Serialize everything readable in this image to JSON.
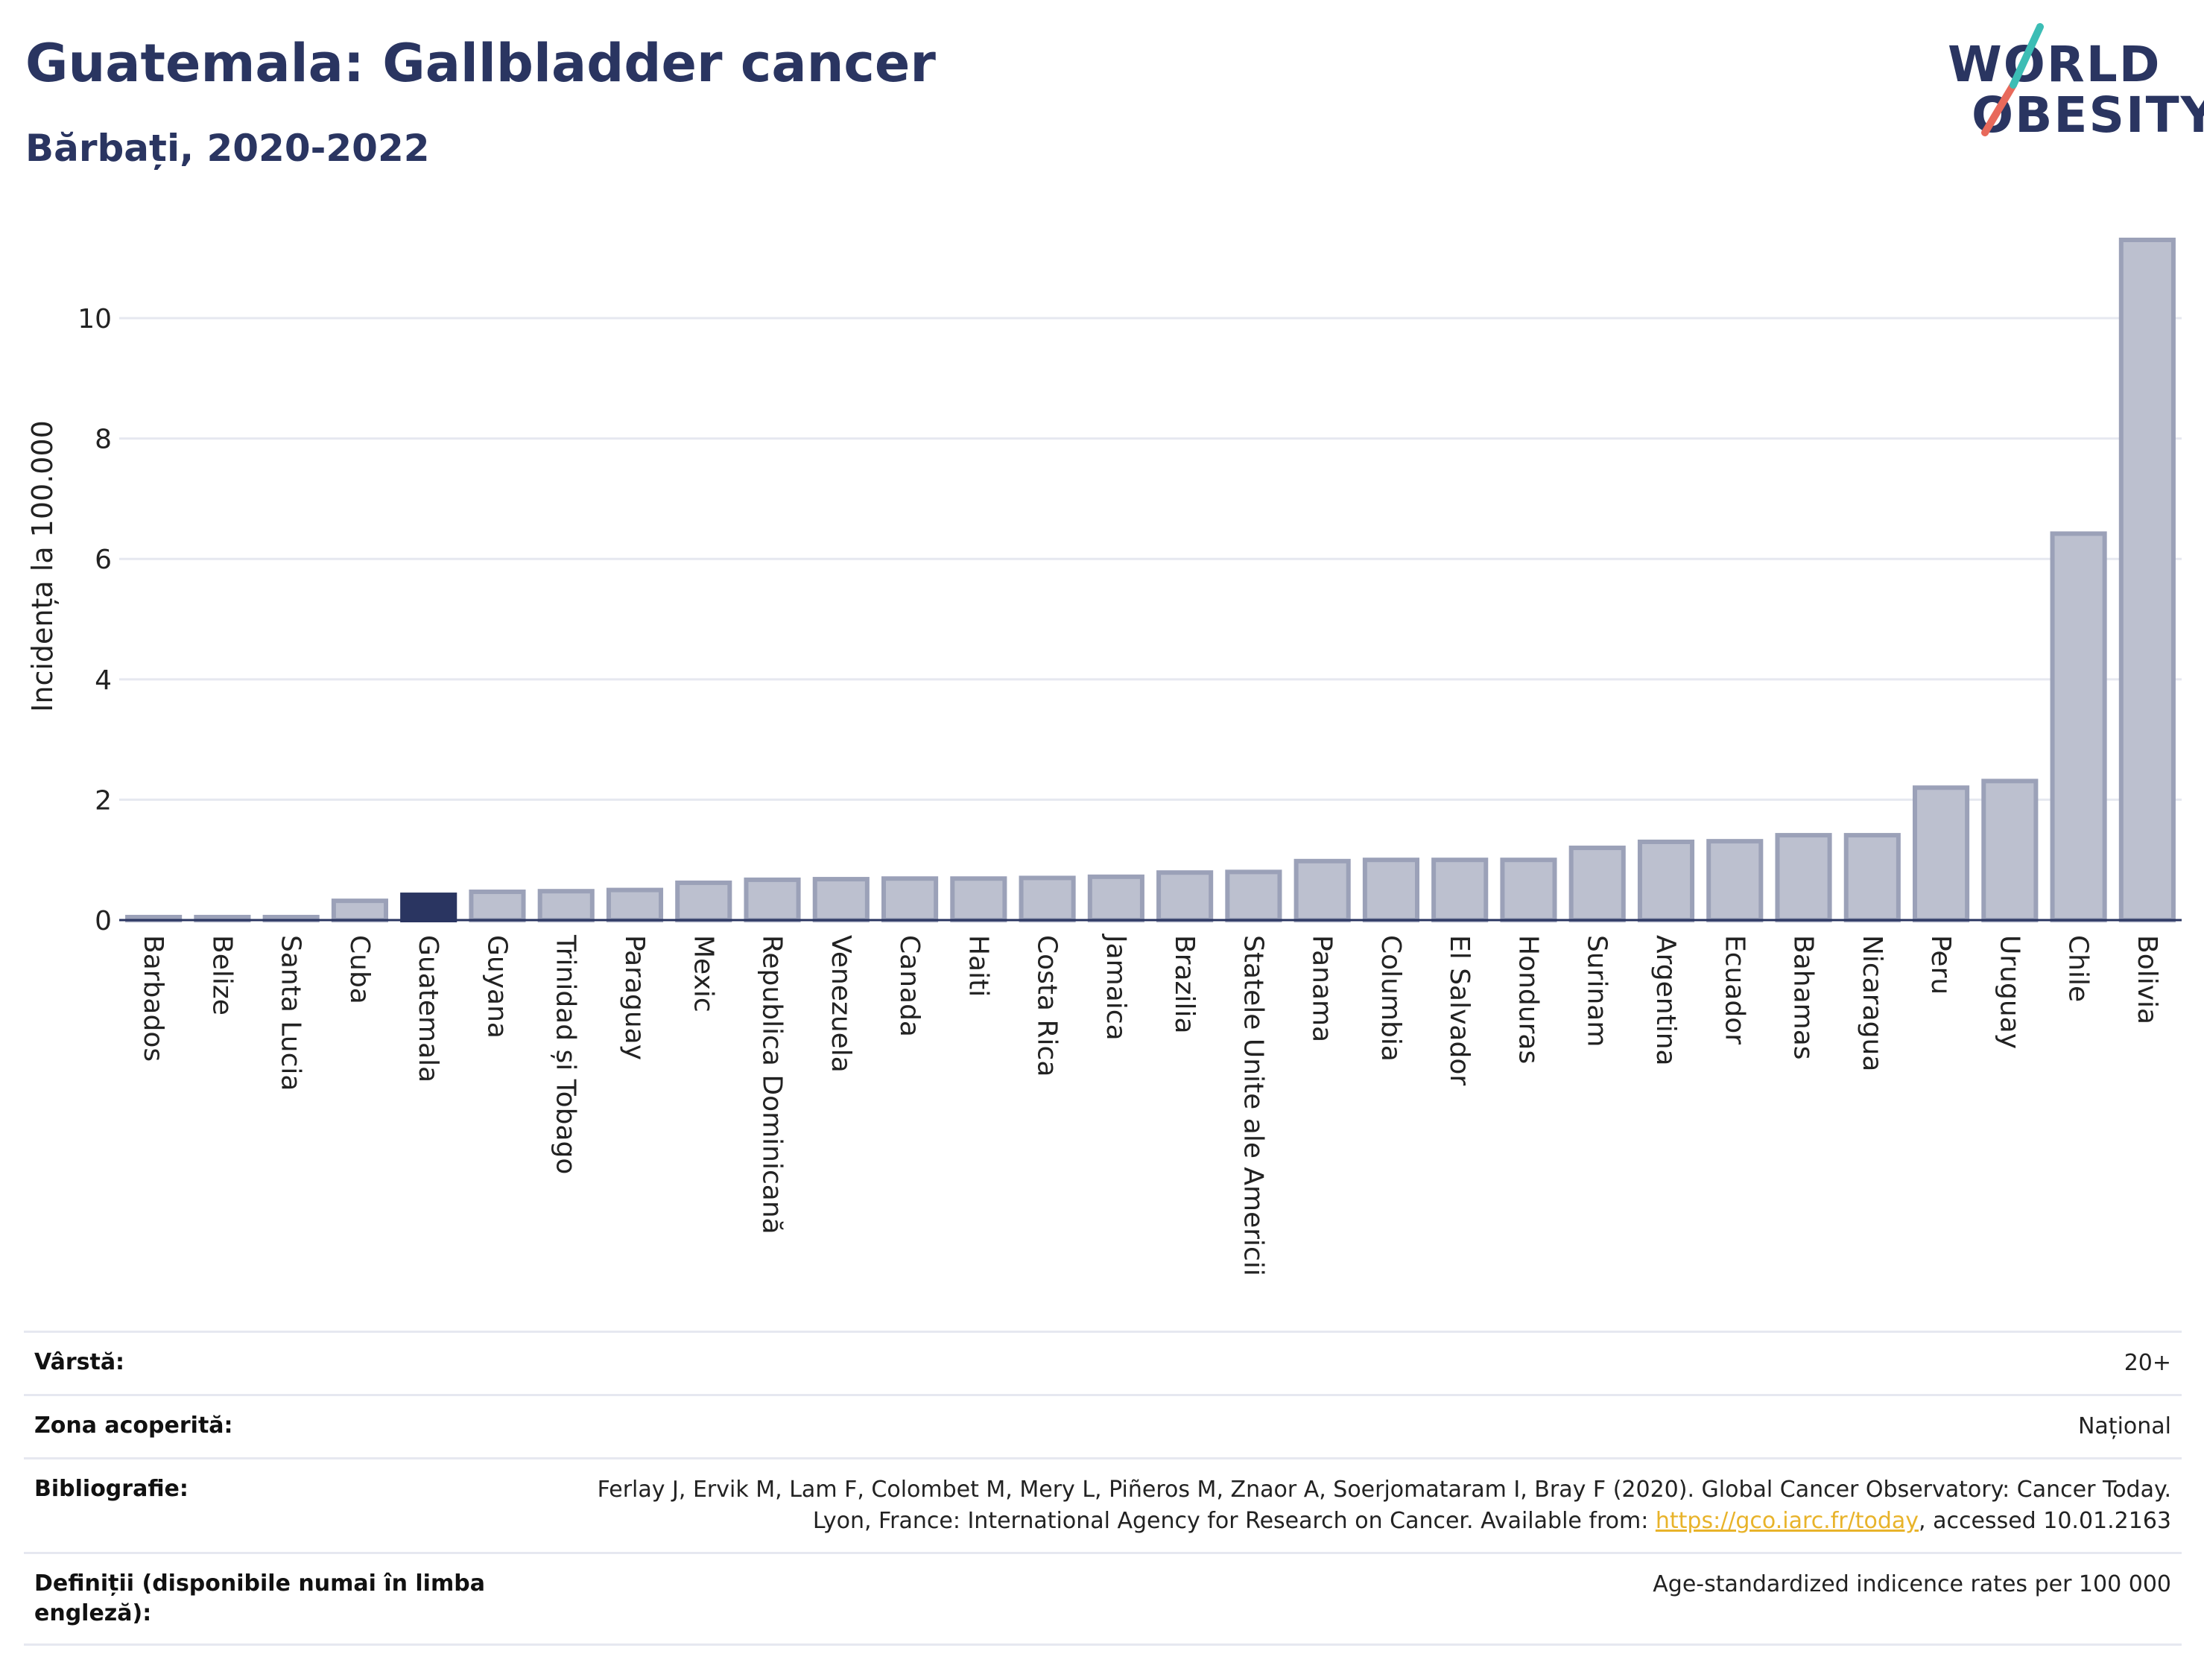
{
  "title": "Guatemala: Gallbladder cancer",
  "subtitle": "Bărbați, 2020-2022",
  "logo": {
    "line1": "WORLD",
    "line2": "OBESITY"
  },
  "colors": {
    "title": "#2a3561",
    "highlight_bar": "#2a3561",
    "bar_fill": "#bcc0cf",
    "bar_stroke": "#9ba1b8",
    "grid": "#e6e8f0",
    "logo_teal": "#3cbdb5",
    "logo_red": "#e8695b",
    "link": "#e8b32a"
  },
  "chart_data": {
    "type": "bar",
    "ylabel": "Incidența la 100.000",
    "xlabel": "",
    "ylim": [
      0,
      11.3
    ],
    "yticks": [
      0,
      2,
      4,
      6,
      8,
      10
    ],
    "grid": true,
    "highlight": "Guatemala",
    "categories": [
      "Barbados",
      "Belize",
      "Santa Lucia",
      "Cuba",
      "Guatemala",
      "Guyana",
      "Trinidad și Tobago",
      "Paraguay",
      "Mexic",
      "Republica Dominicană",
      "Venezuela",
      "Canada",
      "Haiti",
      "Costa Rica",
      "Jamaica",
      "Brazilia",
      "Statele Unite ale Americii",
      "Panama",
      "Columbia",
      "El Salvador",
      "Honduras",
      "Surinam",
      "Argentina",
      "Ecuador",
      "Bahamas",
      "Nicaragua",
      "Peru",
      "Uruguay",
      "Chile",
      "Bolivia"
    ],
    "values": [
      0.05,
      0.05,
      0.05,
      0.32,
      0.42,
      0.47,
      0.48,
      0.5,
      0.62,
      0.67,
      0.68,
      0.69,
      0.69,
      0.7,
      0.72,
      0.79,
      0.8,
      0.98,
      1.0,
      1.0,
      1.0,
      1.2,
      1.3,
      1.31,
      1.41,
      1.41,
      2.2,
      2.31,
      6.42,
      11.3
    ]
  },
  "meta": {
    "age_label": "Vârstă:",
    "age_value": "20+",
    "area_label": "Zona acoperită:",
    "area_value": "Național",
    "biblio_label": "Bibliografie:",
    "biblio_text1": "Ferlay J, Ervik M, Lam F, Colombet M, Mery L, Piñeros M, Znaor A, Soerjomataram I, Bray F (2020). Global Cancer Observatory: Cancer Today. Lyon, France: International Agency for Research on Cancer. Available from: ",
    "biblio_link": "https://gco.iarc.fr/today",
    "biblio_text2": ", accessed 10.01.2163",
    "def_label": "Definiții (disponibile numai în limba engleză):",
    "def_value": "Age-standardized indicence rates per 100 000"
  }
}
